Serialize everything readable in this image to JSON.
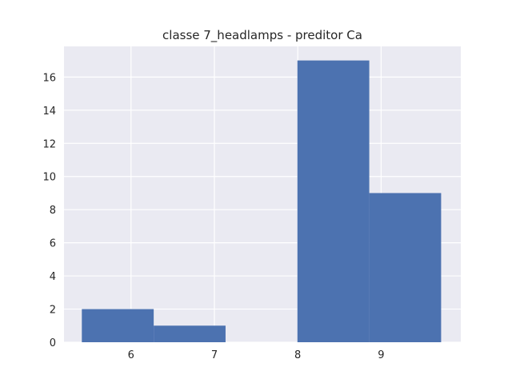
{
  "chart_data": {
    "type": "bar",
    "title": "classe 7_headlamps - preditor Ca",
    "xlabel": "",
    "ylabel": "",
    "xlim": [
      5.196,
      9.956
    ],
    "ylim": [
      0,
      17.85
    ],
    "bins": [
      {
        "x0": 5.41,
        "x1": 6.272,
        "value": 2
      },
      {
        "x0": 6.272,
        "x1": 7.134,
        "value": 1
      },
      {
        "x0": 7.134,
        "x1": 7.996,
        "value": 0
      },
      {
        "x0": 7.996,
        "x1": 8.858,
        "value": 17
      },
      {
        "x0": 8.858,
        "x1": 9.72,
        "value": 9
      }
    ],
    "x_ticks": [
      6,
      7,
      8,
      9
    ],
    "x_tick_labels": [
      "6",
      "7",
      "8",
      "9"
    ],
    "y_ticks": [
      0,
      2,
      4,
      6,
      8,
      10,
      12,
      14,
      16
    ],
    "y_tick_labels": [
      "0",
      "2",
      "4",
      "6",
      "8",
      "10",
      "12",
      "14",
      "16"
    ],
    "grid": true,
    "colors": {
      "plot_background": "#EAEAF2",
      "bar": "#4C72B0",
      "grid": "#FFFFFF",
      "text": "#262626"
    }
  }
}
